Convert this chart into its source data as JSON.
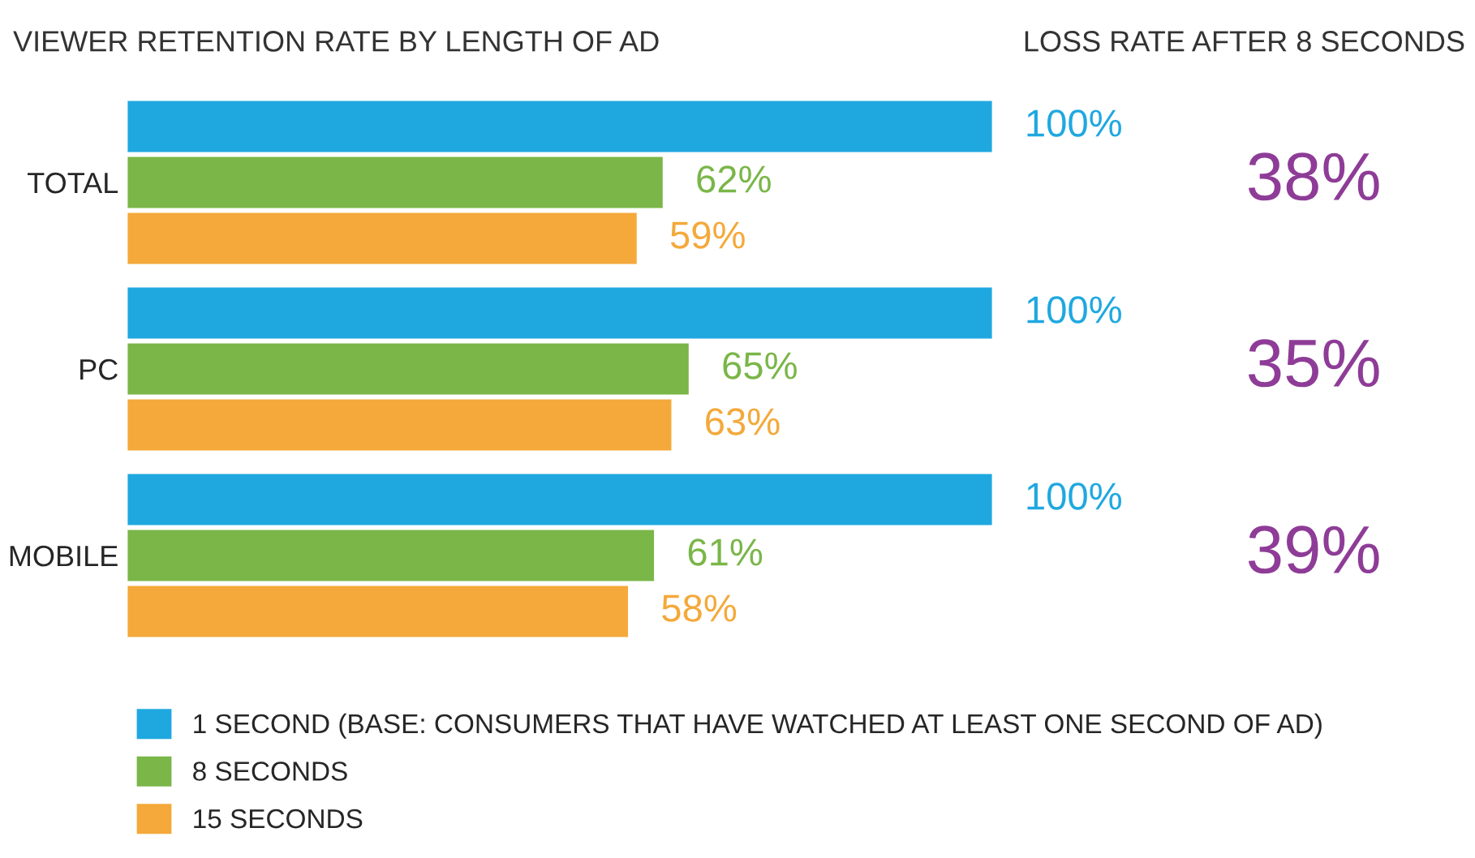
{
  "chart_data": {
    "type": "bar",
    "orientation": "horizontal",
    "title": "VIEWER RETENTION RATE BY LENGTH OF AD",
    "categories": [
      "TOTAL",
      "PC",
      "MOBILE"
    ],
    "series": [
      {
        "name": "1 SECOND (BASE: CONSUMERS THAT HAVE WATCHED AT LEAST ONE SECOND OF AD)",
        "color": "#1fa8e0",
        "values": [
          100,
          100,
          100
        ],
        "value_labels": [
          "100%",
          "100%",
          "100%"
        ]
      },
      {
        "name": "8 SECONDS",
        "color": "#7ab648",
        "values": [
          62,
          65,
          61
        ],
        "value_labels": [
          "62%",
          "65%",
          "61%"
        ]
      },
      {
        "name": "15 SECONDS",
        "color": "#f4a93a",
        "values": [
          59,
          63,
          58
        ],
        "value_labels": [
          "59%",
          "63%",
          "58%"
        ]
      }
    ],
    "xlim": [
      0,
      100
    ],
    "tick_labels": "y",
    "grid": false,
    "legend": "bottom",
    "annotations": [
      "LOSS RATE AFTER 8 SECONDS",
      "38%",
      "35%",
      "39%"
    ]
  }
}
